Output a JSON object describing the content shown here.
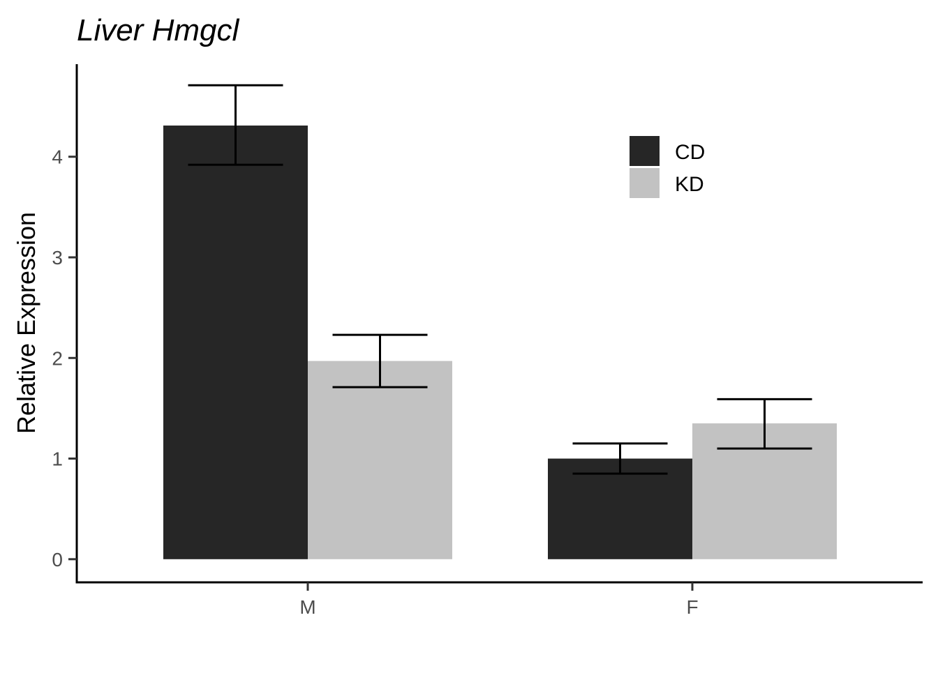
{
  "chart_data": {
    "type": "bar",
    "title": "Liver Hmgcl",
    "xlabel": "",
    "ylabel": "Relative Expression",
    "categories": [
      "M",
      "F"
    ],
    "series": [
      {
        "name": "CD",
        "color": "#262626",
        "values": [
          4.31,
          1.0
        ],
        "error_low": [
          3.92,
          0.85
        ],
        "error_high": [
          4.71,
          1.15
        ]
      },
      {
        "name": "KD",
        "color": "#c2c2c2",
        "values": [
          1.97,
          1.35
        ],
        "error_low": [
          1.71,
          1.1
        ],
        "error_high": [
          2.23,
          1.59
        ]
      }
    ],
    "y_ticks": [
      0,
      1,
      2,
      3,
      4
    ],
    "ylim": [
      -0.23,
      4.92
    ],
    "grid": false,
    "legend_position": "top-right"
  }
}
